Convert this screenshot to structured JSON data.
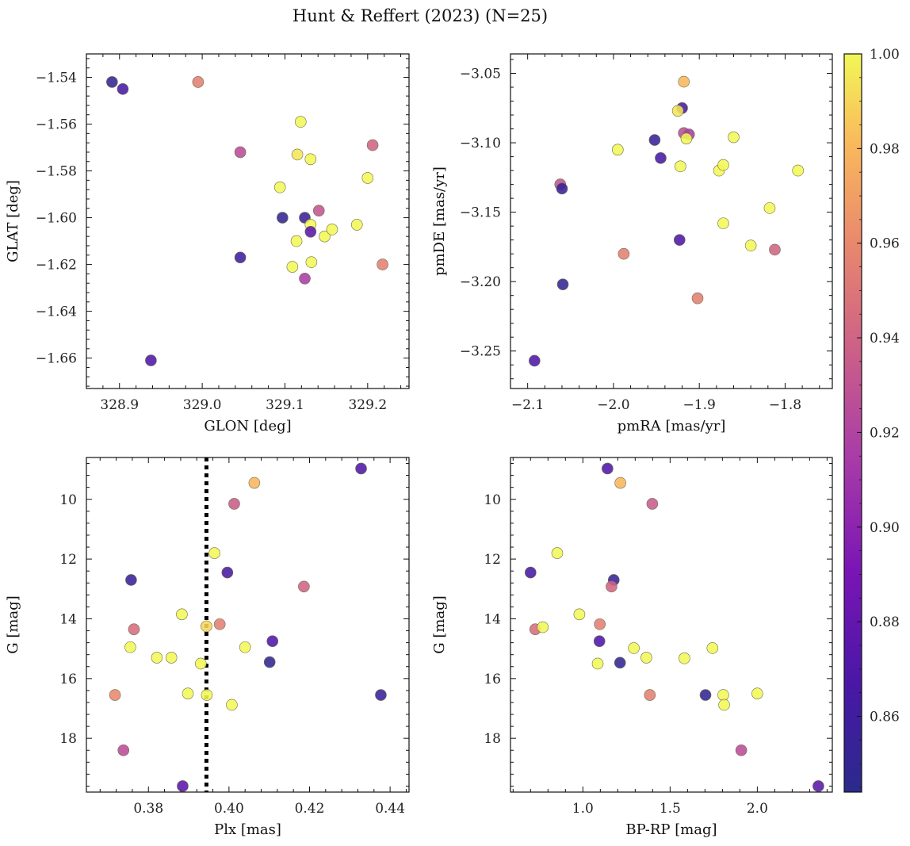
{
  "figure": {
    "title": "Hunt & Reffert (2023) (N=25)"
  },
  "colorbar": {
    "vmin": 0.844,
    "vmax": 1.0,
    "ticks": [
      0.86,
      0.88,
      0.9,
      0.92,
      0.94,
      0.96,
      0.98,
      1.0
    ],
    "tick_labels": [
      "0.86",
      "0.88",
      "0.90",
      "0.92",
      "0.94",
      "0.96",
      "0.98",
      "1.00"
    ],
    "colormap": "plasma"
  },
  "chart_data": [
    {
      "type": "scatter",
      "id": "glon-glat",
      "xlabel": "GLON [deg]",
      "ylabel": "GLAT [deg]",
      "xlim": [
        328.86,
        329.25
      ],
      "ylim": [
        -1.673,
        -1.53
      ],
      "y_inverted": false,
      "xticks": [
        328.9,
        329.0,
        329.1,
        329.2
      ],
      "xtick_labels": [
        "328.9",
        "329.0",
        "329.1",
        "329.2"
      ],
      "yticks": [
        -1.54,
        -1.56,
        -1.58,
        -1.6,
        -1.62,
        -1.64,
        -1.66
      ],
      "ytick_labels": [
        "−1.54",
        "−1.56",
        "−1.58",
        "−1.60",
        "−1.62",
        "−1.64",
        "−1.66"
      ],
      "points": [
        {
          "x": 328.891,
          "y": -1.542,
          "c": 0.85
        },
        {
          "x": 328.904,
          "y": -1.545,
          "c": 0.865
        },
        {
          "x": 328.995,
          "y": -1.542,
          "c": 0.955
        },
        {
          "x": 329.046,
          "y": -1.572,
          "c": 0.925
        },
        {
          "x": 329.119,
          "y": -1.559,
          "c": 1.0
        },
        {
          "x": 329.115,
          "y": -1.573,
          "c": 0.995
        },
        {
          "x": 329.131,
          "y": -1.575,
          "c": 1.0
        },
        {
          "x": 329.206,
          "y": -1.569,
          "c": 0.94
        },
        {
          "x": 329.094,
          "y": -1.587,
          "c": 1.0
        },
        {
          "x": 329.2,
          "y": -1.583,
          "c": 1.0
        },
        {
          "x": 329.097,
          "y": -1.6,
          "c": 0.85
        },
        {
          "x": 329.124,
          "y": -1.6,
          "c": 0.855
        },
        {
          "x": 329.141,
          "y": -1.597,
          "c": 0.93
        },
        {
          "x": 329.131,
          "y": -1.603,
          "c": 1.0
        },
        {
          "x": 329.131,
          "y": -1.606,
          "c": 0.875
        },
        {
          "x": 329.114,
          "y": -1.61,
          "c": 1.0
        },
        {
          "x": 329.148,
          "y": -1.608,
          "c": 1.0
        },
        {
          "x": 329.157,
          "y": -1.605,
          "c": 1.0
        },
        {
          "x": 329.187,
          "y": -1.603,
          "c": 1.0
        },
        {
          "x": 329.046,
          "y": -1.617,
          "c": 0.86
        },
        {
          "x": 329.109,
          "y": -1.621,
          "c": 1.0
        },
        {
          "x": 329.132,
          "y": -1.619,
          "c": 1.0
        },
        {
          "x": 329.124,
          "y": -1.626,
          "c": 0.915
        },
        {
          "x": 329.218,
          "y": -1.62,
          "c": 0.955
        },
        {
          "x": 328.938,
          "y": -1.661,
          "c": 0.87
        }
      ]
    },
    {
      "type": "scatter",
      "id": "pm",
      "xlabel": "pmRA [mas/yr]",
      "ylabel": "pmDE [mas/yr]",
      "xlim": [
        -2.12,
        -1.745
      ],
      "ylim": [
        -3.277,
        -3.036
      ],
      "y_inverted": false,
      "xticks": [
        -2.1,
        -2.0,
        -1.9,
        -1.8
      ],
      "xtick_labels": [
        "−2.1",
        "−2.0",
        "−1.9",
        "−1.8"
      ],
      "yticks": [
        -3.05,
        -3.1,
        -3.15,
        -3.2,
        -3.25
      ],
      "ytick_labels": [
        "−3.05",
        "−3.10",
        "−3.15",
        "−3.20",
        "−3.25"
      ],
      "points": [
        {
          "x": -1.918,
          "y": -3.056,
          "c": 0.98
        },
        {
          "x": -1.92,
          "y": -3.075,
          "c": 0.865
        },
        {
          "x": -1.925,
          "y": -3.077,
          "c": 0.995
        },
        {
          "x": -1.918,
          "y": -3.093,
          "c": 0.925
        },
        {
          "x": -1.912,
          "y": -3.094,
          "c": 0.915
        },
        {
          "x": -1.915,
          "y": -3.097,
          "c": 1.0
        },
        {
          "x": -1.952,
          "y": -3.098,
          "c": 0.855
        },
        {
          "x": -1.86,
          "y": -3.096,
          "c": 1.0
        },
        {
          "x": -1.995,
          "y": -3.105,
          "c": 1.0
        },
        {
          "x": -1.945,
          "y": -3.111,
          "c": 0.865
        },
        {
          "x": -1.922,
          "y": -3.117,
          "c": 1.0
        },
        {
          "x": -1.877,
          "y": -3.12,
          "c": 1.0
        },
        {
          "x": -1.872,
          "y": -3.116,
          "c": 1.0
        },
        {
          "x": -1.785,
          "y": -3.12,
          "c": 1.0
        },
        {
          "x": -2.062,
          "y": -3.13,
          "c": 0.93
        },
        {
          "x": -2.06,
          "y": -3.133,
          "c": 0.855
        },
        {
          "x": -1.818,
          "y": -3.147,
          "c": 1.0
        },
        {
          "x": -1.872,
          "y": -3.158,
          "c": 1.0
        },
        {
          "x": -1.923,
          "y": -3.17,
          "c": 0.87
        },
        {
          "x": -1.84,
          "y": -3.174,
          "c": 1.0
        },
        {
          "x": -1.812,
          "y": -3.177,
          "c": 0.94
        },
        {
          "x": -1.988,
          "y": -3.18,
          "c": 0.955
        },
        {
          "x": -2.059,
          "y": -3.202,
          "c": 0.85
        },
        {
          "x": -1.902,
          "y": -3.212,
          "c": 0.955
        },
        {
          "x": -2.092,
          "y": -3.257,
          "c": 0.87
        }
      ]
    },
    {
      "type": "scatter",
      "id": "plx-g",
      "xlabel": "Plx [mas]",
      "ylabel": "G [mag]",
      "xlim": [
        0.3646,
        0.4447
      ],
      "ylim": [
        19.8,
        8.6
      ],
      "y_inverted": true,
      "xticks": [
        0.38,
        0.4,
        0.42,
        0.44
      ],
      "xtick_labels": [
        "0.38",
        "0.40",
        "0.42",
        "0.44"
      ],
      "yticks": [
        10,
        12,
        14,
        16,
        18
      ],
      "ytick_labels": [
        "10",
        "12",
        "14",
        "16",
        "18"
      ],
      "vline": 0.3944,
      "points": [
        {
          "x": 0.4328,
          "y": 8.97,
          "c": 0.87
        },
        {
          "x": 0.4063,
          "y": 9.45,
          "c": 0.98
        },
        {
          "x": 0.4013,
          "y": 10.15,
          "c": 0.935
        },
        {
          "x": 0.3964,
          "y": 11.8,
          "c": 1.0
        },
        {
          "x": 0.3996,
          "y": 12.45,
          "c": 0.865
        },
        {
          "x": 0.3757,
          "y": 12.7,
          "c": 0.855
        },
        {
          "x": 0.4186,
          "y": 12.92,
          "c": 0.94
        },
        {
          "x": 0.3883,
          "y": 13.85,
          "c": 1.0
        },
        {
          "x": 0.3977,
          "y": 14.18,
          "c": 0.955
        },
        {
          "x": 0.3764,
          "y": 14.35,
          "c": 0.945
        },
        {
          "x": 0.3944,
          "y": 14.25,
          "c": 0.99
        },
        {
          "x": 0.4108,
          "y": 14.75,
          "c": 0.87
        },
        {
          "x": 0.3755,
          "y": 14.95,
          "c": 1.0
        },
        {
          "x": 0.404,
          "y": 14.95,
          "c": 1.0
        },
        {
          "x": 0.3821,
          "y": 15.3,
          "c": 1.0
        },
        {
          "x": 0.3857,
          "y": 15.3,
          "c": 1.0
        },
        {
          "x": 0.4101,
          "y": 15.45,
          "c": 0.85
        },
        {
          "x": 0.393,
          "y": 15.5,
          "c": 1.0
        },
        {
          "x": 0.3717,
          "y": 16.55,
          "c": 0.96
        },
        {
          "x": 0.3898,
          "y": 16.5,
          "c": 1.0
        },
        {
          "x": 0.3945,
          "y": 16.55,
          "c": 1.0
        },
        {
          "x": 0.4377,
          "y": 16.55,
          "c": 0.855
        },
        {
          "x": 0.4007,
          "y": 16.88,
          "c": 1.0
        },
        {
          "x": 0.3738,
          "y": 18.4,
          "c": 0.925
        },
        {
          "x": 0.3885,
          "y": 19.6,
          "c": 0.875
        }
      ]
    },
    {
      "type": "scatter",
      "id": "cmd",
      "xlabel": "BP-RP [mag]",
      "ylabel": "G [mag]",
      "xlim": [
        0.585,
        2.43
      ],
      "ylim": [
        19.8,
        8.6
      ],
      "y_inverted": true,
      "xticks": [
        1.0,
        1.5,
        2.0
      ],
      "xtick_labels": [
        "1.0",
        "1.5",
        "2.0"
      ],
      "yticks": [
        10,
        12,
        14,
        16,
        18
      ],
      "ytick_labels": [
        "10",
        "12",
        "14",
        "16",
        "18"
      ],
      "points": [
        {
          "x": 1.141,
          "y": 8.97,
          "c": 0.87
        },
        {
          "x": 1.215,
          "y": 9.45,
          "c": 0.98
        },
        {
          "x": 1.398,
          "y": 10.15,
          "c": 0.935
        },
        {
          "x": 0.853,
          "y": 11.8,
          "c": 1.0
        },
        {
          "x": 0.7,
          "y": 12.45,
          "c": 0.865
        },
        {
          "x": 1.177,
          "y": 12.7,
          "c": 0.855
        },
        {
          "x": 1.164,
          "y": 12.92,
          "c": 0.94
        },
        {
          "x": 0.98,
          "y": 13.85,
          "c": 1.0
        },
        {
          "x": 1.097,
          "y": 14.18,
          "c": 0.955
        },
        {
          "x": 0.727,
          "y": 14.35,
          "c": 0.945
        },
        {
          "x": 0.77,
          "y": 14.28,
          "c": 1.0
        },
        {
          "x": 1.095,
          "y": 14.75,
          "c": 0.87
        },
        {
          "x": 1.292,
          "y": 14.98,
          "c": 1.0
        },
        {
          "x": 1.743,
          "y": 14.98,
          "c": 1.0
        },
        {
          "x": 1.364,
          "y": 15.3,
          "c": 1.0
        },
        {
          "x": 1.582,
          "y": 15.32,
          "c": 1.0
        },
        {
          "x": 1.213,
          "y": 15.47,
          "c": 0.85
        },
        {
          "x": 1.085,
          "y": 15.5,
          "c": 1.0
        },
        {
          "x": 1.384,
          "y": 16.55,
          "c": 0.955
        },
        {
          "x": 1.703,
          "y": 16.55,
          "c": 0.85
        },
        {
          "x": 1.805,
          "y": 16.55,
          "c": 1.0
        },
        {
          "x": 2.0,
          "y": 16.5,
          "c": 1.0
        },
        {
          "x": 1.81,
          "y": 16.88,
          "c": 1.0
        },
        {
          "x": 1.908,
          "y": 18.4,
          "c": 0.925
        },
        {
          "x": 2.35,
          "y": 19.6,
          "c": 0.875
        }
      ]
    }
  ]
}
